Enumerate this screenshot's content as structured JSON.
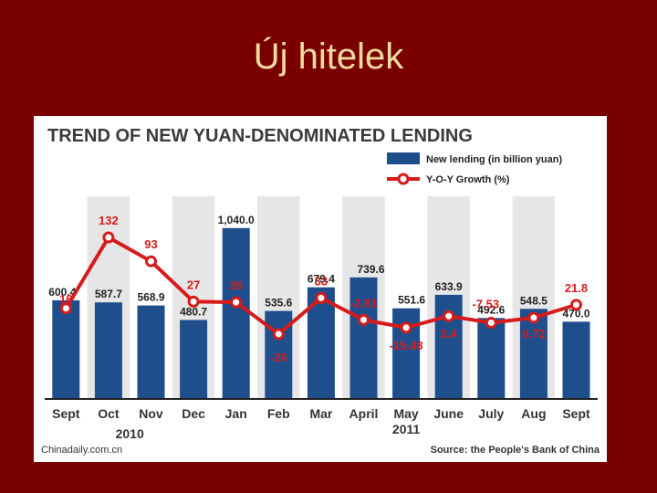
{
  "slide": {
    "title": "Új hitelek"
  },
  "chart_data": {
    "type": "bar",
    "title": "TREND OF NEW YUAN-DENOMINATED  LENDING",
    "categories": [
      "Sept",
      "Oct",
      "Nov",
      "Dec",
      "Jan",
      "Feb",
      "Mar",
      "April",
      "May",
      "June",
      "July",
      "Aug",
      "Sept"
    ],
    "year_labels": [
      "2010",
      "2011"
    ],
    "series": [
      {
        "name": "New lending (in billion yuan)",
        "type": "bar",
        "color": "#1f4e8c",
        "values": [
          600.4,
          587.7,
          568.9,
          480.7,
          1040.0,
          535.6,
          679.4,
          739.6,
          551.6,
          633.9,
          492.6,
          548.5,
          470.0
        ],
        "labels": [
          "600.4",
          "587.7",
          "568.9",
          "480.7",
          "1,040.0",
          "535.6",
          "679.4",
          "739.6",
          "551.6",
          "633.9",
          "492.6",
          "548.5",
          "470.0"
        ]
      },
      {
        "name": "Y-O-Y Growth (%)",
        "type": "line",
        "color": "#d61b1b",
        "values": [
          16,
          132,
          93,
          27,
          26,
          -26,
          33,
          -2.81,
          -15.48,
          3.4,
          -7.53,
          0.72,
          21.8
        ],
        "labels": [
          "16",
          "132",
          "93",
          "27",
          "26",
          "-26",
          "33",
          "-2.81",
          "-15.48",
          "3.4",
          "-7.53",
          "0.72",
          "21.8"
        ]
      }
    ],
    "legend_position": "top-right",
    "grid": false,
    "band_colors": [
      "#ffffff",
      "#e6e6e6"
    ]
  },
  "footer": {
    "source_left": "Chinadaily.com.cn",
    "source_right": "Source: the People's Bank of China"
  }
}
